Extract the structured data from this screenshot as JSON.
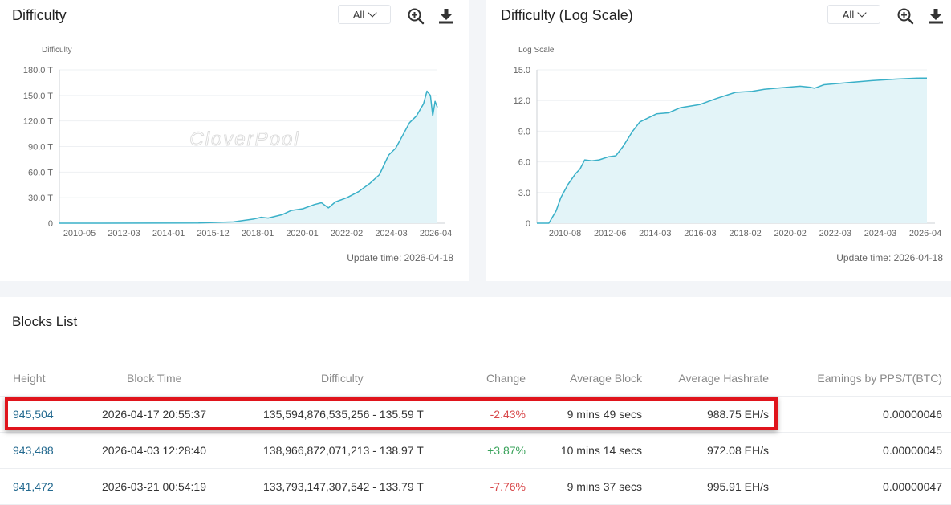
{
  "difficulty_panel": {
    "title": "Difficulty",
    "range_label": "All",
    "update_time": "Update time: 2026-04-18",
    "watermark": "CloverPool"
  },
  "log_panel": {
    "title": "Difficulty (Log Scale)",
    "range_label": "All",
    "update_time": "Update time: 2026-04-18",
    "watermark": "CloverPool"
  },
  "icons": {
    "zoom": "zoom-in-icon",
    "download": "download-icon",
    "dropdown": "chevron-down-icon"
  },
  "colors": {
    "line": "#3ab0c8",
    "area": "#e3f4f8",
    "negative_change": "#d8484a",
    "positive_change": "#3aa35b",
    "link": "#23698f",
    "highlight": "#e0141c"
  },
  "chart_data": [
    {
      "type": "area",
      "ylabel": "Difficulty",
      "x_ticks": [
        "2010-05",
        "2012-03",
        "2014-01",
        "2015-12",
        "2018-01",
        "2020-01",
        "2022-02",
        "2024-03",
        "2026-04"
      ],
      "y_ticks": [
        "0",
        "30.0 T",
        "60.0 T",
        "90.0 T",
        "120.0 T",
        "150.0 T",
        "180.0 T"
      ],
      "ylim": [
        0,
        180
      ],
      "xlim": [
        2010.0,
        2026.3
      ],
      "grid": true,
      "series": [
        {
          "x": [
            2010.0,
            2014.0,
            2016.0,
            2017.5,
            2018.4,
            2018.7,
            2019.0,
            2019.6,
            2020.0,
            2020.5,
            2021.0,
            2021.3,
            2021.6,
            2021.9,
            2022.4,
            2022.9,
            2023.4,
            2023.8,
            2024.2,
            2024.5,
            2024.8,
            2025.1,
            2025.4,
            2025.7,
            2025.85,
            2026.0,
            2026.1,
            2026.2,
            2026.3
          ],
          "y": [
            0,
            0.1,
            0.3,
            1.5,
            5,
            7,
            6,
            10,
            15,
            17,
            22,
            24,
            18,
            25,
            30,
            37,
            47,
            57,
            80,
            88,
            103,
            118,
            126,
            140,
            155,
            150,
            126,
            143,
            136
          ]
        }
      ]
    },
    {
      "type": "area",
      "ylabel": "Log Scale",
      "x_ticks": [
        "2010-08",
        "2012-06",
        "2014-03",
        "2016-03",
        "2018-02",
        "2020-02",
        "2022-03",
        "2024-03",
        "2026-04"
      ],
      "y_ticks": [
        "0",
        "3.0",
        "6.0",
        "9.0",
        "12.0",
        "15.0"
      ],
      "ylim": [
        0,
        15
      ],
      "xlim": [
        2010.0,
        2026.3
      ],
      "grid": true,
      "series": [
        {
          "x": [
            2010.0,
            2010.5,
            2010.8,
            2011.0,
            2011.3,
            2011.6,
            2011.8,
            2012.0,
            2012.3,
            2012.6,
            2013.0,
            2013.3,
            2013.6,
            2014.0,
            2014.3,
            2015.0,
            2015.5,
            2016.0,
            2016.8,
            2017.5,
            2018.3,
            2019.0,
            2019.5,
            2020.0,
            2021.0,
            2021.4,
            2021.6,
            2022.0,
            2023.0,
            2024.0,
            2025.0,
            2026.0,
            2026.3
          ],
          "y": [
            0,
            0,
            1.2,
            2.5,
            3.8,
            4.8,
            5.3,
            6.2,
            6.1,
            6.2,
            6.5,
            6.6,
            7.5,
            9.0,
            9.9,
            10.7,
            10.8,
            11.3,
            11.6,
            12.2,
            12.8,
            12.9,
            13.1,
            13.2,
            13.4,
            13.3,
            13.2,
            13.55,
            13.75,
            13.95,
            14.1,
            14.2,
            14.2
          ]
        }
      ]
    }
  ],
  "blocks": {
    "title": "Blocks List",
    "columns": [
      "Height",
      "Block Time",
      "Difficulty",
      "Change",
      "Average Block",
      "Average Hashrate",
      "Earnings by PPS/T(BTC)"
    ],
    "rows": [
      {
        "height": "945,504",
        "time": "2026-04-17 20:55:37",
        "difficulty": "135,594,876,535,256 - 135.59 T",
        "change": "-2.43%",
        "change_dir": "neg",
        "avg_block": "9 mins 49 secs",
        "hashrate": "988.75 EH/s",
        "earnings": "0.00000046"
      },
      {
        "height": "943,488",
        "time": "2026-04-03 12:28:40",
        "difficulty": "138,966,872,071,213 - 138.97 T",
        "change": "+3.87%",
        "change_dir": "pos",
        "avg_block": "10 mins 14 secs",
        "hashrate": "972.08 EH/s",
        "earnings": "0.00000045"
      },
      {
        "height": "941,472",
        "time": "2026-03-21 00:54:19",
        "difficulty": "133,793,147,307,542 - 133.79 T",
        "change": "-7.76%",
        "change_dir": "neg",
        "avg_block": "9 mins 37 secs",
        "hashrate": "995.91 EH/s",
        "earnings": "0.00000047"
      }
    ]
  }
}
